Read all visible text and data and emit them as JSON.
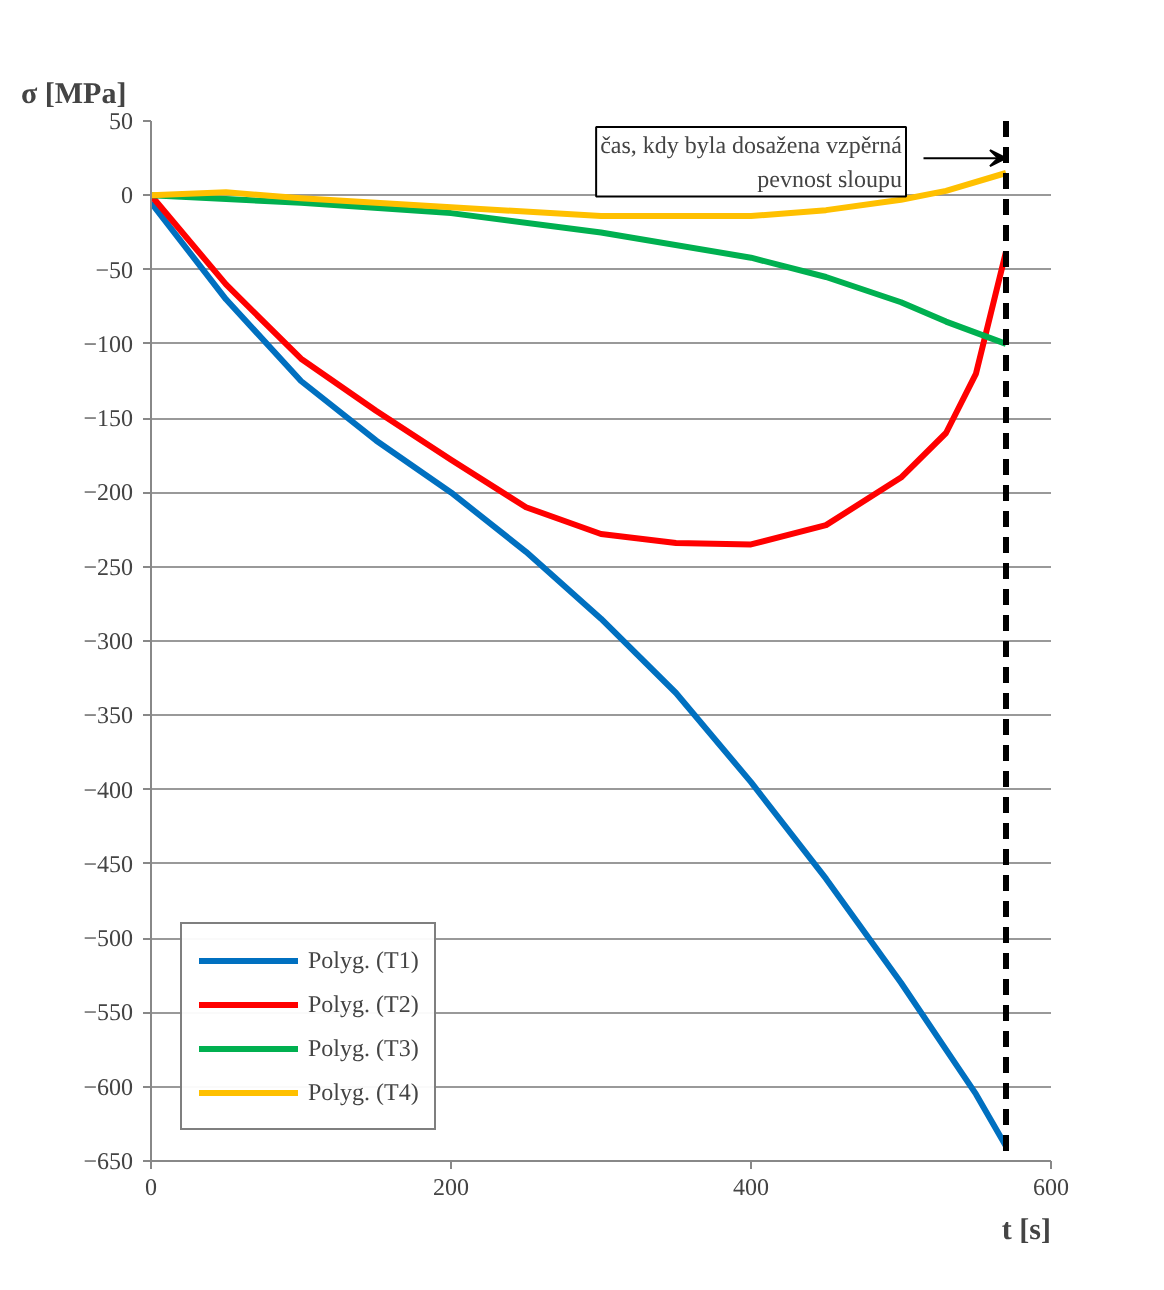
{
  "chart_data": {
    "type": "line",
    "xlabel": "t [s]",
    "ylabel": "σ [MPa]",
    "xlim": [
      0,
      600
    ],
    "xticks": [
      0,
      200,
      400,
      600
    ],
    "ylim": [
      -650,
      50
    ],
    "yticks": [
      50,
      0,
      -50,
      -100,
      -150,
      -200,
      -250,
      -300,
      -350,
      -400,
      -450,
      -500,
      -550,
      -600,
      -650
    ],
    "grid": "y",
    "legend": "bottom left",
    "line_style": "solid",
    "marker": "none",
    "series": [
      {
        "name": "Polyg. (T1)",
        "color": "#0070c0",
        "x": [
          0,
          50,
          100,
          150,
          200,
          250,
          300,
          350,
          400,
          450,
          500,
          530,
          550,
          570
        ],
        "values": [
          -5,
          -70,
          -125,
          -165,
          -200,
          -240,
          -285,
          -335,
          -395,
          -460,
          -530,
          -575,
          -605,
          -640
        ]
      },
      {
        "name": "Polyg. (T2)",
        "color": "#ff0000",
        "x": [
          0,
          50,
          100,
          150,
          200,
          250,
          300,
          350,
          400,
          450,
          500,
          530,
          550,
          570
        ],
        "values": [
          0,
          -60,
          -110,
          -145,
          -178,
          -210,
          -228,
          -234,
          -235,
          -222,
          -190,
          -160,
          -120,
          -38
        ]
      },
      {
        "name": "Polyg. (T3)",
        "color": "#00b050",
        "x": [
          0,
          100,
          200,
          300,
          400,
          450,
          500,
          530,
          570
        ],
        "values": [
          0,
          -5,
          -12,
          -25,
          -42,
          -55,
          -72,
          -85,
          -100
        ]
      },
      {
        "name": "Polyg. (T4)",
        "color": "#ffc000",
        "x": [
          0,
          50,
          100,
          200,
          300,
          400,
          450,
          500,
          530,
          570
        ],
        "values": [
          0,
          2,
          -2,
          -8,
          -14,
          -14,
          -10,
          -3,
          3,
          15
        ]
      }
    ],
    "ref_lines": [
      {
        "axis": "x",
        "value": 570,
        "label": "čas, kdy byla dosažena vzpěrná\npevnost sloupu",
        "color": "#000000",
        "line_style": "dashed"
      }
    ]
  }
}
